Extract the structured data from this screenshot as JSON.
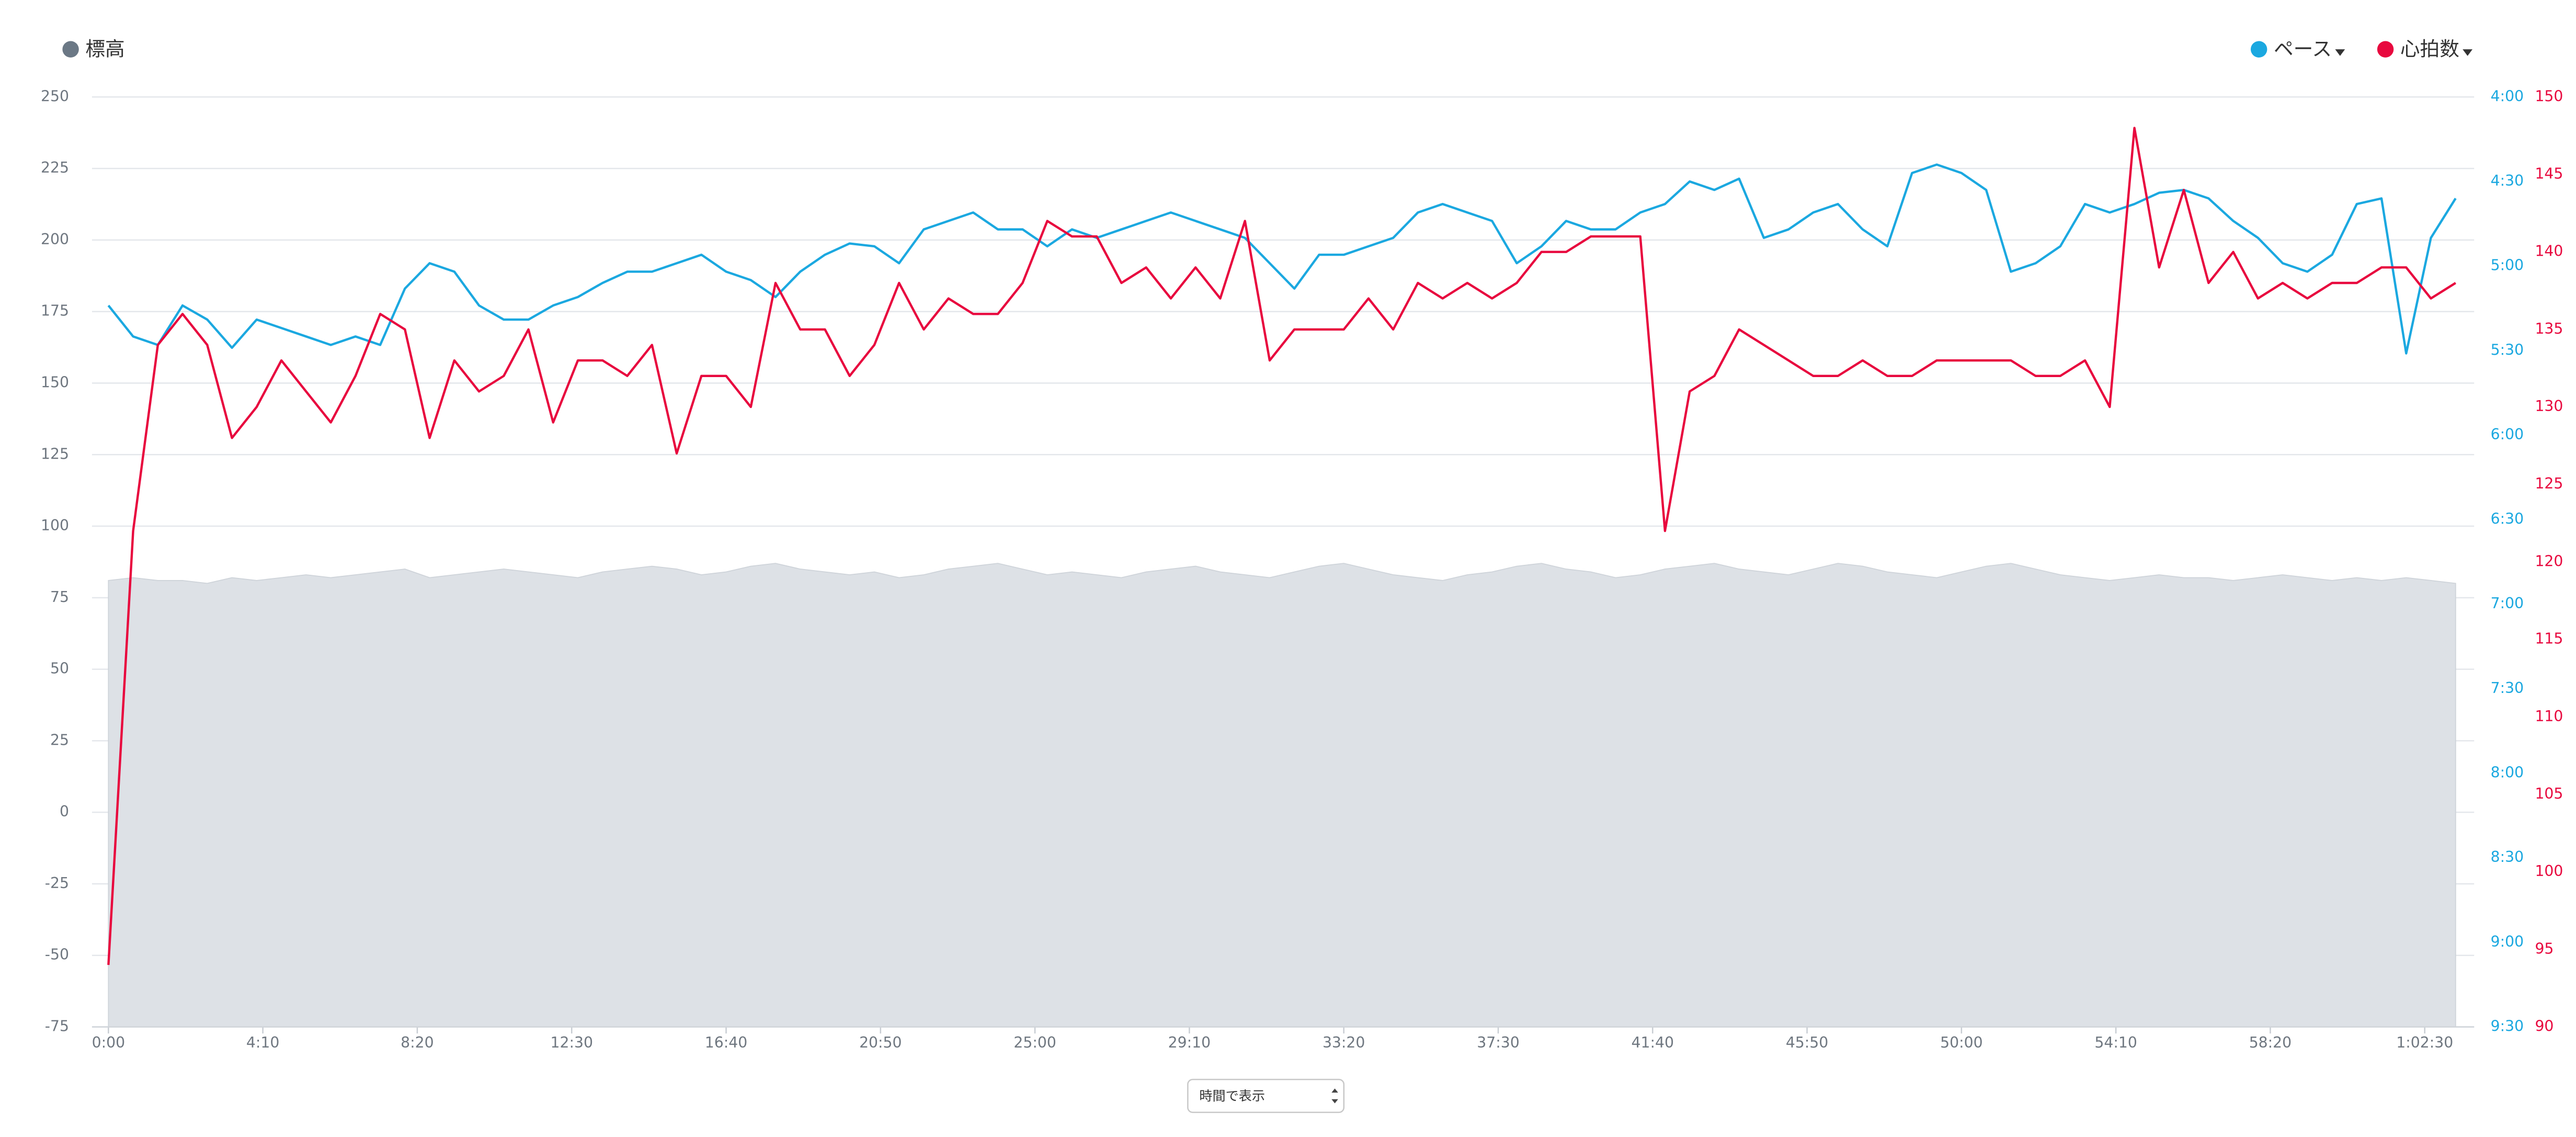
{
  "chart_data": {
    "type": "line",
    "x": [
      0,
      40,
      80,
      120,
      160,
      200,
      240,
      280,
      320,
      360,
      400,
      440,
      480,
      520,
      560,
      600,
      640,
      680,
      720,
      760,
      800,
      840,
      880,
      920,
      960,
      1000,
      1040,
      1080,
      1120,
      1160,
      1200,
      1240,
      1280,
      1320,
      1360,
      1400,
      1440,
      1480,
      1520,
      1560,
      1600,
      1640,
      1680,
      1720,
      1760,
      1800,
      1840,
      1880,
      1920,
      1960,
      2000,
      2040,
      2080,
      2120,
      2160,
      2200,
      2240,
      2280,
      2320,
      2360,
      2400,
      2440,
      2480,
      2520,
      2560,
      2600,
      2640,
      2680,
      2720,
      2760,
      2800,
      2840,
      2880,
      2920,
      2960,
      3000,
      3040,
      3080,
      3120,
      3160,
      3200,
      3240,
      3280,
      3320,
      3360,
      3400,
      3440,
      3480,
      3520,
      3560,
      3600,
      3640,
      3680,
      3720,
      3760,
      3800
    ],
    "xlim": [
      0,
      3830
    ],
    "xticks": [
      {
        "value": 0,
        "label": "0:00"
      },
      {
        "value": 250,
        "label": "4:10"
      },
      {
        "value": 500,
        "label": "8:20"
      },
      {
        "value": 750,
        "label": "12:30"
      },
      {
        "value": 1000,
        "label": "16:40"
      },
      {
        "value": 1250,
        "label": "20:50"
      },
      {
        "value": 1500,
        "label": "25:00"
      },
      {
        "value": 1750,
        "label": "29:10"
      },
      {
        "value": 2000,
        "label": "33:20"
      },
      {
        "value": 2250,
        "label": "37:30"
      },
      {
        "value": 2500,
        "label": "41:40"
      },
      {
        "value": 2750,
        "label": "45:50"
      },
      {
        "value": 3000,
        "label": "50:00"
      },
      {
        "value": 3250,
        "label": "54:10"
      },
      {
        "value": 3500,
        "label": "58:20"
      },
      {
        "value": 3750,
        "label": "1:02:30"
      }
    ],
    "ylim": [
      -75,
      250
    ],
    "yticks": [
      -75,
      -50,
      -25,
      0,
      25,
      50,
      75,
      100,
      125,
      150,
      175,
      200,
      225,
      250
    ],
    "y2lim": [
      240,
      570
    ],
    "y2_inverted": true,
    "y2ticks": [
      {
        "value": 240,
        "label": "4:00"
      },
      {
        "value": 270,
        "label": "4:30"
      },
      {
        "value": 300,
        "label": "5:00"
      },
      {
        "value": 330,
        "label": "5:30"
      },
      {
        "value": 360,
        "label": "6:00"
      },
      {
        "value": 390,
        "label": "6:30"
      },
      {
        "value": 420,
        "label": "7:00"
      },
      {
        "value": 450,
        "label": "7:30"
      },
      {
        "value": 480,
        "label": "8:00"
      },
      {
        "value": 510,
        "label": "8:30"
      },
      {
        "value": 540,
        "label": "9:00"
      },
      {
        "value": 570,
        "label": "9:30"
      }
    ],
    "y3lim": [
      90,
      150
    ],
    "y3ticks": [
      90,
      95,
      100,
      105,
      110,
      115,
      120,
      125,
      130,
      135,
      140,
      145,
      150
    ],
    "grid": true,
    "series": [
      {
        "name": "標高",
        "kind": "area",
        "axis": "y",
        "color": "#dde1e6",
        "legend_color": "#6b7885",
        "legend_position": "top-left",
        "values": [
          81,
          82,
          81,
          81,
          80,
          82,
          81,
          82,
          83,
          82,
          83,
          84,
          85,
          82,
          83,
          84,
          85,
          84,
          83,
          82,
          84,
          85,
          86,
          85,
          83,
          84,
          86,
          87,
          85,
          84,
          83,
          84,
          82,
          83,
          85,
          86,
          87,
          85,
          83,
          84,
          83,
          82,
          84,
          85,
          86,
          84,
          83,
          82,
          84,
          86,
          87,
          85,
          83,
          82,
          81,
          83,
          84,
          86,
          87,
          85,
          84,
          82,
          83,
          85,
          86,
          87,
          85,
          84,
          83,
          85,
          87,
          86,
          84,
          83,
          82,
          84,
          86,
          87,
          85,
          83,
          82,
          81,
          82,
          83,
          82,
          82,
          81,
          82,
          83,
          82,
          81,
          82,
          81,
          82,
          81,
          80
        ]
      },
      {
        "name": "ペース",
        "kind": "line",
        "axis": "y2",
        "color": "#1ba8e0",
        "legend_position": "top-right",
        "values": [
          314,
          325,
          328,
          314,
          319,
          329,
          319,
          322,
          325,
          328,
          325,
          328,
          308,
          299,
          302,
          314,
          319,
          319,
          314,
          311,
          306,
          302,
          302,
          299,
          296,
          302,
          305,
          311,
          302,
          296,
          292,
          293,
          299,
          287,
          284,
          281,
          287,
          287,
          293,
          287,
          290,
          287,
          284,
          281,
          284,
          287,
          290,
          299,
          308,
          296,
          296,
          293,
          290,
          281,
          278,
          281,
          284,
          299,
          293,
          284,
          287,
          287,
          281,
          278,
          270,
          273,
          269,
          290,
          287,
          281,
          278,
          287,
          293,
          267,
          264,
          267,
          273,
          302,
          299,
          293,
          278,
          281,
          278,
          274,
          273,
          276,
          284,
          290,
          299,
          302,
          296,
          278,
          276,
          331,
          290,
          276
        ]
      },
      {
        "name": "心拍数",
        "kind": "line",
        "axis": "y3",
        "color": "#e8083e",
        "legend_position": "top-right",
        "values": [
          94,
          122,
          134,
          136,
          134,
          128,
          130,
          133,
          131,
          129,
          132,
          136,
          135,
          128,
          133,
          131,
          132,
          135,
          129,
          133,
          133,
          132,
          134,
          127,
          132,
          132,
          130,
          138,
          135,
          135,
          132,
          134,
          138,
          135,
          137,
          136,
          136,
          138,
          142,
          141,
          141,
          138,
          139,
          137,
          139,
          137,
          142,
          133,
          135,
          135,
          135,
          137,
          135,
          138,
          137,
          138,
          137,
          138,
          140,
          140,
          141,
          141,
          141,
          122,
          131,
          132,
          135,
          134,
          133,
          132,
          132,
          133,
          132,
          132,
          133,
          133,
          133,
          133,
          132,
          132,
          133,
          130,
          148,
          139,
          144,
          138,
          140,
          137,
          138,
          137,
          138,
          138,
          139,
          139,
          137,
          138
        ]
      }
    ]
  },
  "controls": {
    "view_select": "時間で表示"
  }
}
